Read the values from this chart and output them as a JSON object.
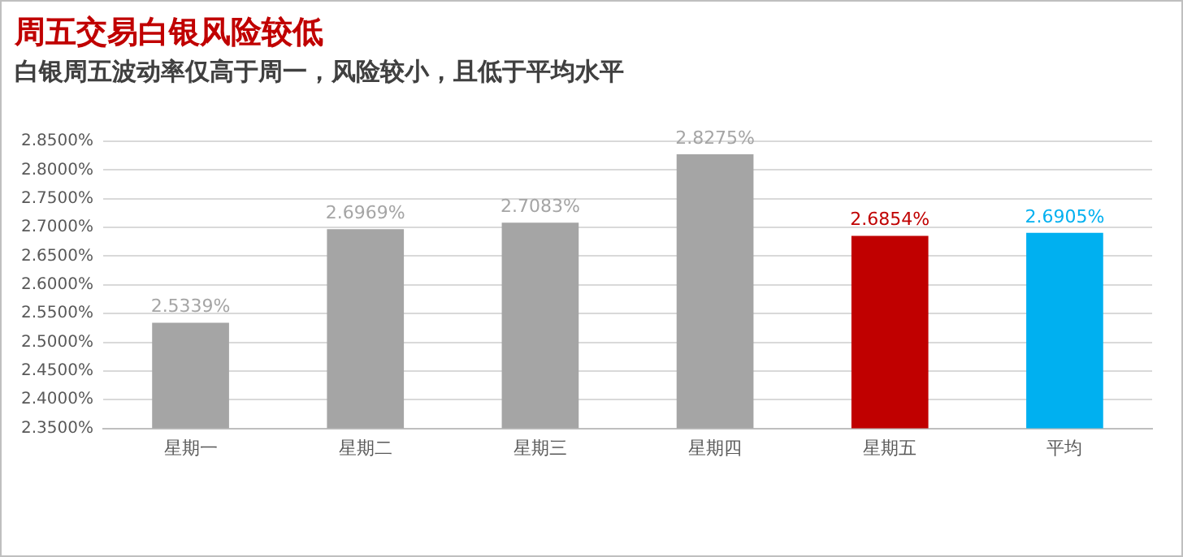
{
  "chart_data": {
    "type": "bar",
    "title": "周五交易白银风险较低",
    "subtitle": "白银周五波动率仅高于周一，风险较小，且低于平均水平",
    "categories": [
      "星期一",
      "星期二",
      "星期三",
      "星期四",
      "星期五",
      "平均"
    ],
    "values": [
      2.5339,
      2.6969,
      2.7083,
      2.8275,
      2.6854,
      2.6905
    ],
    "colors": [
      "#a5a5a5",
      "#a5a5a5",
      "#a5a5a5",
      "#a5a5a5",
      "#c00000",
      "#00b0f0"
    ],
    "value_labels": [
      "2.5339%",
      "2.6969%",
      "2.7083%",
      "2.8275%",
      "2.6854%",
      "2.6905%"
    ],
    "ylim": [
      2.35,
      2.85
    ],
    "yticks": [
      {
        "value": 2.35,
        "label": "2.3500%"
      },
      {
        "value": 2.4,
        "label": "2.4000%"
      },
      {
        "value": 2.45,
        "label": "2.4500%"
      },
      {
        "value": 2.5,
        "label": "2.5000%"
      },
      {
        "value": 2.55,
        "label": "2.5500%"
      },
      {
        "value": 2.6,
        "label": "2.6000%"
      },
      {
        "value": 2.65,
        "label": "2.6500%"
      },
      {
        "value": 2.7,
        "label": "2.7000%"
      },
      {
        "value": 2.75,
        "label": "2.7500%"
      },
      {
        "value": 2.8,
        "label": "2.8000%"
      },
      {
        "value": 2.85,
        "label": "2.8500%"
      }
    ],
    "grid": "y"
  }
}
